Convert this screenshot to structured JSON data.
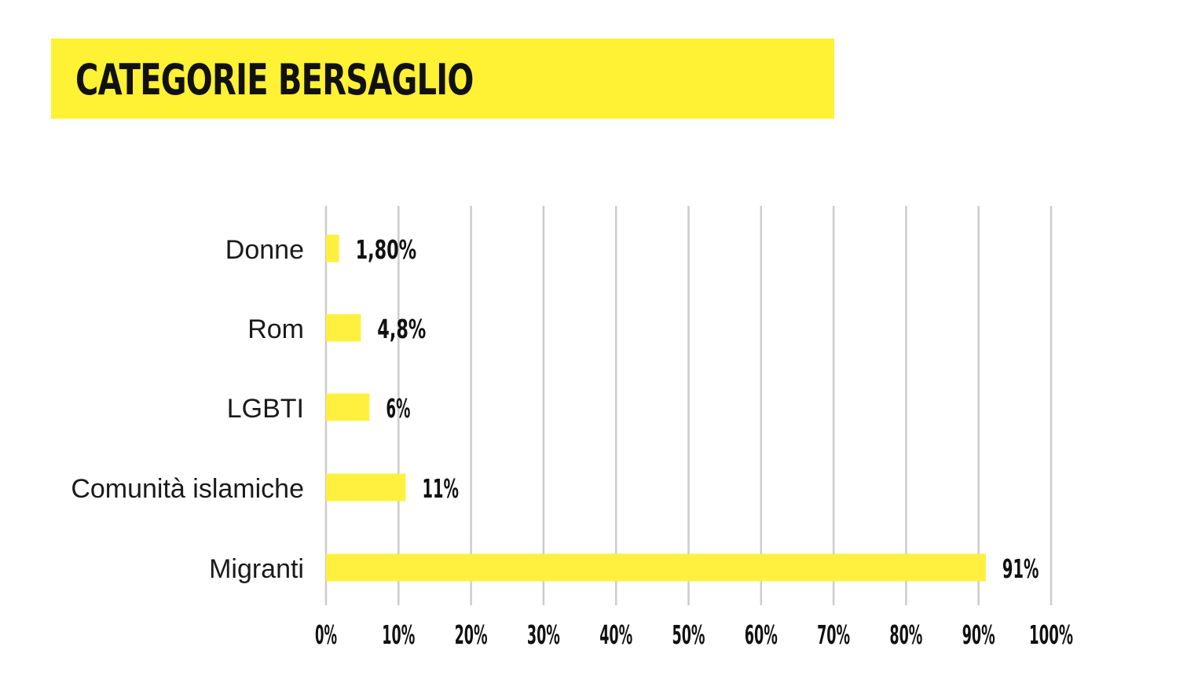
{
  "title": "CATEGORIE BERSAGLIO",
  "colors": {
    "accent": "#fff133",
    "bar": "#fff040",
    "grid": "#cccccc",
    "text": "#111111"
  },
  "chart_data": {
    "type": "bar",
    "orientation": "horizontal",
    "title": "CATEGORIE BERSAGLIO",
    "categories": [
      "Donne",
      "Rom",
      "LGBTI",
      "Comunità islamiche",
      "Migranti"
    ],
    "values": [
      1.8,
      4.8,
      6,
      11,
      91
    ],
    "value_labels": [
      "1,80%",
      "4,8%",
      "6%",
      "11%",
      "91%"
    ],
    "xlim": [
      0,
      100
    ],
    "x_ticks": [
      0,
      10,
      20,
      30,
      40,
      50,
      60,
      70,
      80,
      90,
      100
    ],
    "x_tick_labels": [
      "0%",
      "10%",
      "20%",
      "30%",
      "40%",
      "50%",
      "60%",
      "70%",
      "80%",
      "90%",
      "100%"
    ],
    "xlabel": "",
    "ylabel": "",
    "grid": true,
    "legend": "none"
  }
}
